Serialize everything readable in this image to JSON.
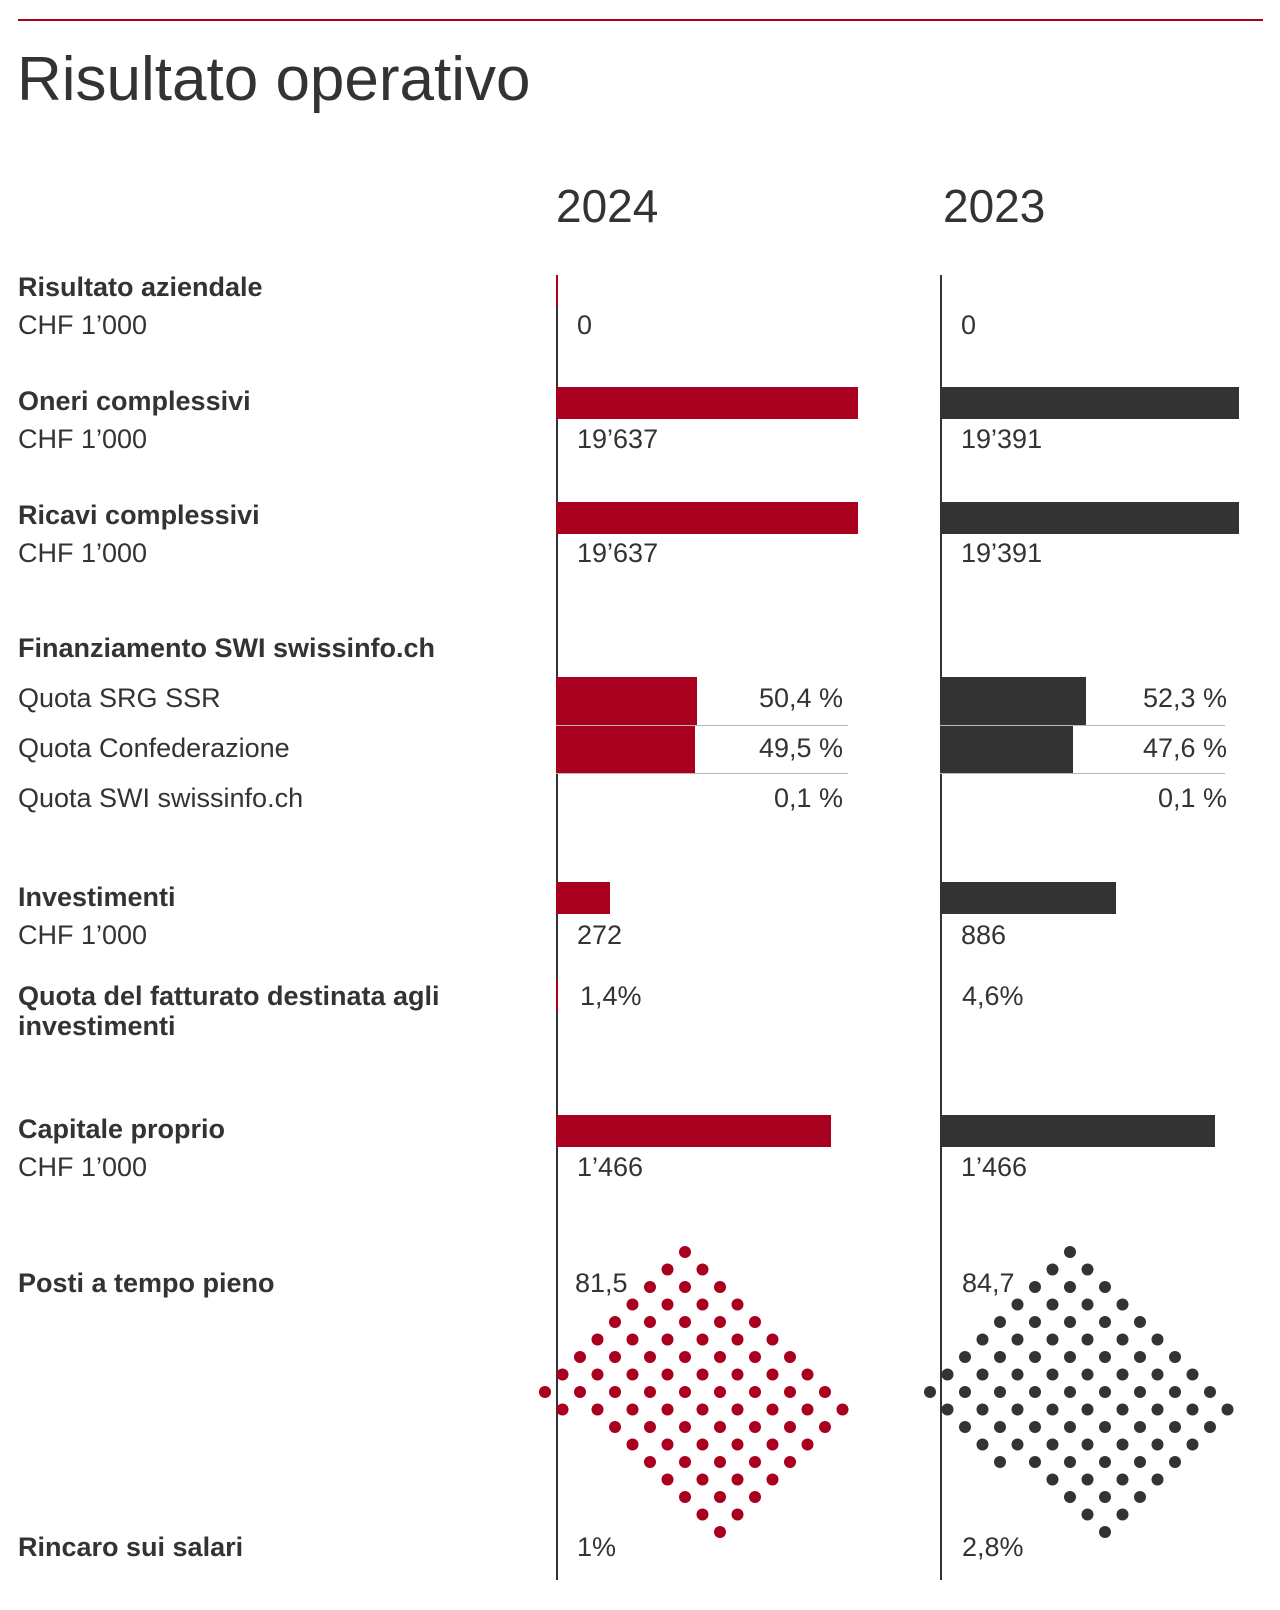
{
  "title": "Risultato operativo",
  "colors": {
    "y2024": "#a8001e",
    "y2023": "#333333"
  },
  "chart_data": {
    "type": "bar",
    "title": "Risultato operativo",
    "years": [
      "2024",
      "2023"
    ],
    "metrics": [
      {
        "id": "risultato",
        "label": "Risultato aziendale",
        "unit": "CHF 1’000",
        "values": [
          0,
          0
        ],
        "display": [
          "0",
          "0"
        ]
      },
      {
        "id": "oneri",
        "label": "Oneri complessivi",
        "unit": "CHF 1’000",
        "values": [
          19637,
          19391
        ],
        "display": [
          "19’637",
          "19’391"
        ]
      },
      {
        "id": "ricavi",
        "label": "Ricavi complessivi",
        "unit": "CHF 1’000",
        "values": [
          19637,
          19391
        ],
        "display": [
          "19’637",
          "19’391"
        ]
      },
      {
        "id": "investimenti",
        "label": "Investimenti",
        "unit": "CHF 1’000",
        "values": [
          272,
          886
        ],
        "display": [
          "272",
          "886"
        ]
      },
      {
        "id": "quota_fatturato",
        "label": "Quota del fatturato destinata agli investimenti",
        "unit": "%",
        "values": [
          1.4,
          4.6
        ],
        "display": [
          "1,4%",
          "4,6%"
        ]
      },
      {
        "id": "capitale",
        "label": "Capitale proprio",
        "unit": "CHF 1’000",
        "values": [
          1466,
          1466
        ],
        "display": [
          "1’466",
          "1’466"
        ]
      },
      {
        "id": "posti",
        "label": "Posti a tempo pieno",
        "unit": "",
        "values": [
          81.5,
          84.7
        ],
        "display": [
          "81,5",
          "84,7"
        ]
      },
      {
        "id": "rincaro",
        "label": "Rincaro sui salari",
        "unit": "%",
        "values": [
          1,
          2.8
        ],
        "display": [
          "1%",
          "2,8%"
        ]
      }
    ],
    "financing": {
      "label": "Finanziamento SWI swissinfo.ch",
      "items": [
        {
          "label": "Quota SRG SSR",
          "values": [
            50.4,
            52.3
          ],
          "display": [
            "50,4 %",
            "52,3 %"
          ]
        },
        {
          "label": "Quota Confederazione",
          "values": [
            49.5,
            47.6
          ],
          "display": [
            "49,5 %",
            "47,6 %"
          ]
        },
        {
          "label": "Quota SWI swissinfo.ch",
          "values": [
            0.1,
            0.1
          ],
          "display": [
            "0,1 %",
            "0,1 %"
          ]
        }
      ]
    }
  }
}
